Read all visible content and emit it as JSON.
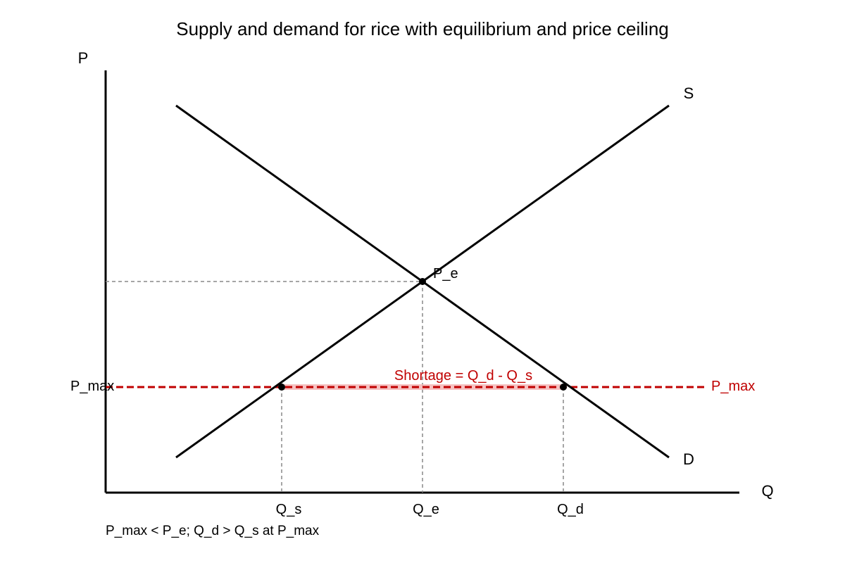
{
  "title": "Supply and demand for rice with equilibrium and price ceiling",
  "axes": {
    "y_label": "P",
    "x_label": "Q"
  },
  "curves": {
    "supply_label": "S",
    "demand_label": "D"
  },
  "equilibrium": {
    "price_label": "P_e",
    "quantity_label": "Q_e"
  },
  "price_ceiling": {
    "left_label": "P_max",
    "right_label": "P_max",
    "shortage_label": "Shortage = Q_d - Q_s",
    "qs_label": "Q_s",
    "qd_label": "Q_d"
  },
  "note": "P_max < P_e; Q_d > Q_s at P_max",
  "colors": {
    "curve": "#000000",
    "ceiling": "#c00000",
    "shortage_fill": "#f4b6b6",
    "guide": "#888888"
  }
}
